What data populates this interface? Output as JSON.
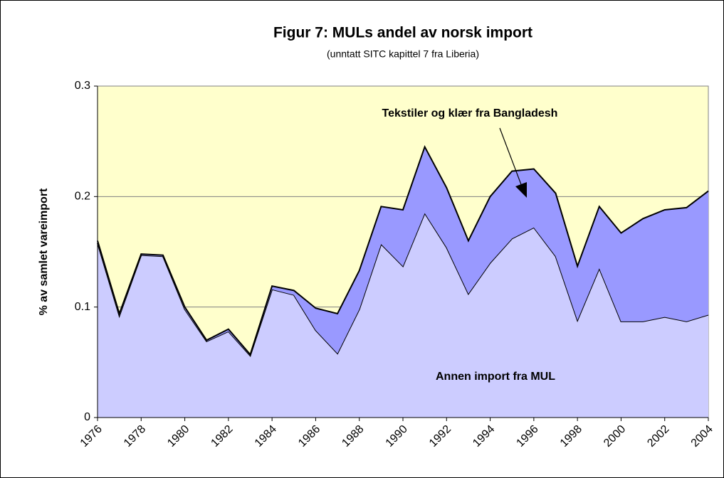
{
  "chart_data": {
    "type": "stacked-area",
    "title": "Figur 7: MULs andel av norsk import",
    "subtitle": "(unntatt SITC kapittel 7 fra Liberia)",
    "y_label": "% av samlet vareimport",
    "x": [
      1976,
      1977,
      1978,
      1979,
      1980,
      1981,
      1982,
      1983,
      1984,
      1985,
      1986,
      1987,
      1988,
      1989,
      1990,
      1991,
      1992,
      1993,
      1994,
      1995,
      1996,
      1997,
      1998,
      1999,
      2000,
      2001,
      2002,
      2003,
      2004
    ],
    "xlim": [
      1976,
      2004
    ],
    "xticks": [
      1976,
      1978,
      1980,
      1982,
      1984,
      1986,
      1988,
      1990,
      1992,
      1994,
      1996,
      1998,
      2000,
      2002,
      2004
    ],
    "ylim": [
      0,
      0.3
    ],
    "yticks": [
      0,
      0.1,
      0.2,
      0.3
    ],
    "grid": true,
    "background": "#ffffcc",
    "series": [
      {
        "name": "Annen import fra MUL",
        "color": "#ccccff",
        "values": [
          0.158,
          0.092,
          0.147,
          0.146,
          0.098,
          0.069,
          0.078,
          0.056,
          0.116,
          0.111,
          0.079,
          0.058,
          0.098,
          0.157,
          0.137,
          0.185,
          0.154,
          0.112,
          0.14,
          0.162,
          0.172,
          0.146,
          0.088,
          0.135,
          0.087,
          0.087,
          0.091,
          0.087,
          0.093
        ]
      },
      {
        "name": "Tekstiler og klær fra Bangladesh",
        "color": "#9999ff",
        "values": [
          0.002,
          0.002,
          0.001,
          0.001,
          0.002,
          0.001,
          0.002,
          0.001,
          0.003,
          0.004,
          0.02,
          0.036,
          0.035,
          0.034,
          0.051,
          0.06,
          0.054,
          0.048,
          0.06,
          0.061,
          0.053,
          0.057,
          0.049,
          0.056,
          0.08,
          0.093,
          0.097,
          0.103,
          0.112
        ]
      }
    ]
  }
}
